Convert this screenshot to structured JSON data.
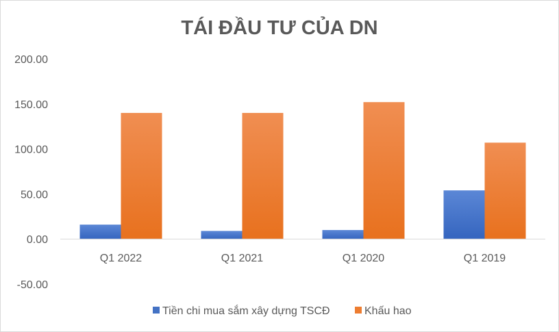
{
  "chart_data": {
    "type": "bar",
    "title": "TÁI ĐẦU TƯ CỦA DN",
    "xlabel": "",
    "ylabel": "",
    "categories": [
      "Q1 2022",
      "Q1 2021",
      "Q1 2020",
      "Q1 2019"
    ],
    "series": [
      {
        "name": "Tiền chi mua sắm xây dựng TSCĐ",
        "color": "#4472c4",
        "values": [
          16,
          9,
          10,
          54
        ]
      },
      {
        "name": "Khấu hao",
        "color": "#ed7d31",
        "values": [
          140,
          140,
          152,
          107
        ]
      }
    ],
    "ylim": [
      -50,
      200
    ],
    "yticks": [
      -50,
      0,
      50,
      100,
      150,
      200
    ],
    "ytick_labels": [
      "-50.00",
      "0.00",
      "50.00",
      "100.00",
      "150.00",
      "200.00"
    ],
    "grid": false,
    "legend_position": "bottom"
  }
}
